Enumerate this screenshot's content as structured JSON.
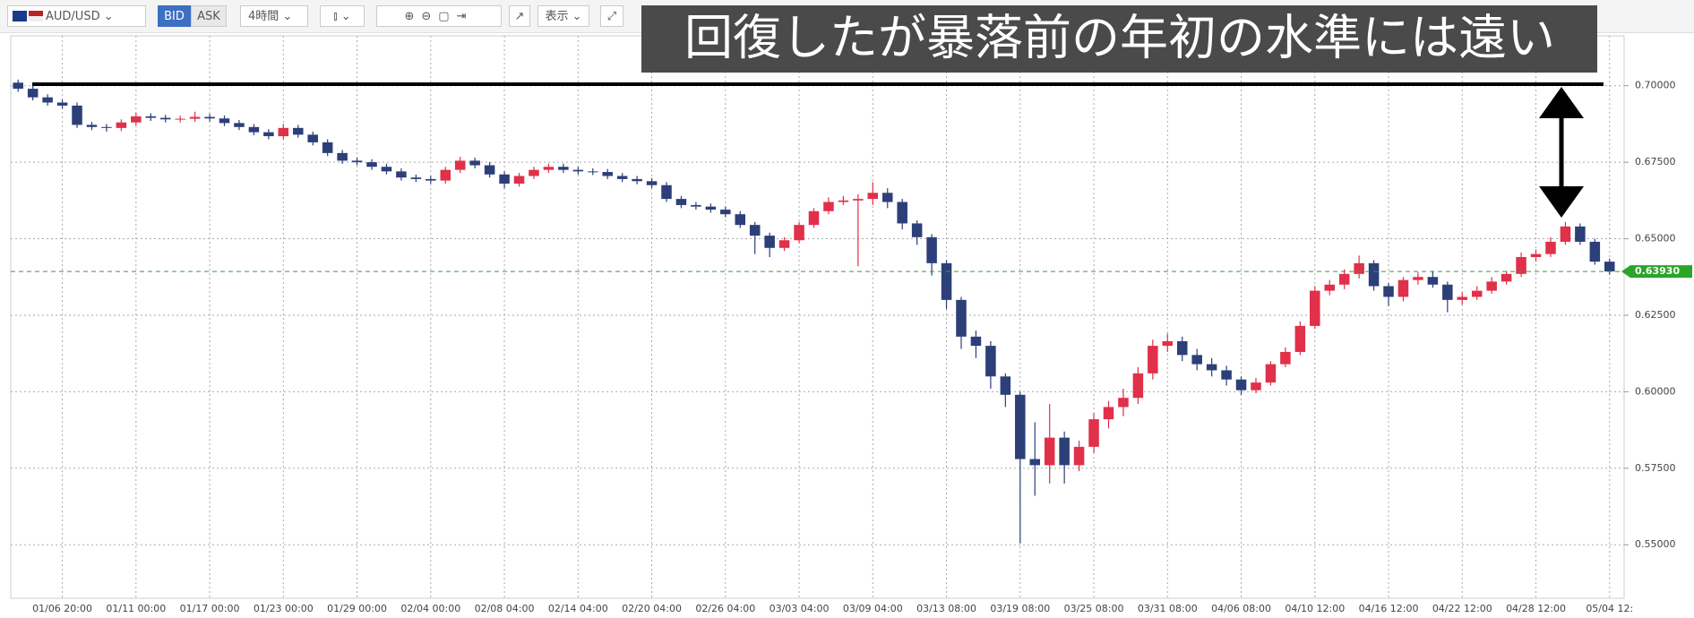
{
  "toolbar": {
    "symbol": "AUD/USD",
    "bid": "BID",
    "ask": "ASK",
    "interval": "4時間",
    "view": "表示"
  },
  "chart_data": {
    "type": "candlestick",
    "title": "回復したが暴落前の年初の水準には遠い",
    "categories": [
      null,
      null,
      null,
      "01/06 20:00",
      null,
      null,
      null,
      null,
      "01/11 00:00",
      null,
      null,
      null,
      null,
      "01/17 00:00",
      null,
      null,
      null,
      null,
      "01/23 00:00",
      null,
      null,
      null,
      null,
      "01/29 00:00",
      null,
      null,
      null,
      null,
      "02/04 00:00",
      null,
      null,
      null,
      null,
      "02/08 04:00",
      null,
      null,
      null,
      null,
      "02/14 04:00",
      null,
      null,
      null,
      null,
      "02/20 04:00",
      null,
      null,
      null,
      null,
      "02/26 04:00",
      null,
      null,
      null,
      null,
      "03/03 04:00",
      null,
      null,
      null,
      null,
      "03/09 04:00",
      null,
      null,
      null,
      null,
      "03/13 08:00",
      null,
      null,
      null,
      null,
      "03/19 08:00",
      null,
      null,
      null,
      null,
      "03/25 08:00",
      null,
      null,
      null,
      null,
      "03/31 08:00",
      null,
      null,
      null,
      null,
      "04/06 08:00",
      null,
      null,
      null,
      null,
      "04/10 12:00",
      null,
      null,
      null,
      null,
      "04/16 12:00",
      null,
      null,
      null,
      null,
      "04/22 12:00",
      null,
      null,
      null,
      null,
      "04/28 12:00",
      null,
      null,
      null,
      null,
      "05/04 12:"
    ],
    "open": [
      0.701,
      0.699,
      0.6962,
      0.6945,
      0.6935,
      0.6872,
      0.6865,
      0.6862,
      0.688,
      0.69,
      0.6895,
      0.689,
      0.6892,
      0.6898,
      0.6893,
      0.6878,
      0.6865,
      0.6848,
      0.6835,
      0.6862,
      0.684,
      0.6815,
      0.678,
      0.6755,
      0.675,
      0.6735,
      0.672,
      0.67,
      0.6695,
      0.669,
      0.6725,
      0.6755,
      0.674,
      0.671,
      0.668,
      0.6705,
      0.6725,
      0.6735,
      0.6725,
      0.672,
      0.6718,
      0.6705,
      0.6695,
      0.6688,
      0.6675,
      0.663,
      0.661,
      0.6605,
      0.6595,
      0.658,
      0.6545,
      0.651,
      0.647,
      0.6495,
      0.6545,
      0.659,
      0.662,
      0.6625,
      0.663,
      0.665,
      0.662,
      0.655,
      0.6505,
      0.642,
      0.63,
      0.618,
      0.615,
      0.605,
      0.599,
      0.578,
      0.576,
      0.585,
      0.576,
      0.582,
      0.591,
      0.595,
      0.598,
      0.606,
      0.615,
      0.6165,
      0.612,
      0.609,
      0.607,
      0.604,
      0.6005,
      0.603,
      0.609,
      0.613,
      0.6215,
      0.633,
      0.635,
      0.6385,
      0.642,
      0.6345,
      0.631,
      0.6365,
      0.6375,
      0.635,
      0.63,
      0.631,
      0.633,
      0.636,
      0.6385,
      0.644,
      0.645,
      0.649,
      0.654,
      0.649,
      0.6425
    ],
    "high": [
      0.702,
      0.7,
      0.6972,
      0.6955,
      0.6945,
      0.6882,
      0.6875,
      0.689,
      0.6912,
      0.691,
      0.6905,
      0.6902,
      0.6915,
      0.6908,
      0.6903,
      0.6888,
      0.6875,
      0.6858,
      0.6875,
      0.6872,
      0.685,
      0.6825,
      0.679,
      0.6765,
      0.676,
      0.6745,
      0.673,
      0.671,
      0.6705,
      0.6735,
      0.6768,
      0.6765,
      0.675,
      0.672,
      0.6715,
      0.6735,
      0.6745,
      0.6745,
      0.6735,
      0.673,
      0.6728,
      0.6715,
      0.6705,
      0.6698,
      0.6685,
      0.664,
      0.662,
      0.6615,
      0.6605,
      0.659,
      0.6555,
      0.652,
      0.6505,
      0.6555,
      0.66,
      0.6635,
      0.664,
      0.6645,
      0.6685,
      0.6665,
      0.663,
      0.656,
      0.6515,
      0.643,
      0.631,
      0.62,
      0.6165,
      0.606,
      0.6,
      0.59,
      0.596,
      0.587,
      0.584,
      0.593,
      0.597,
      0.601,
      0.608,
      0.617,
      0.619,
      0.618,
      0.614,
      0.611,
      0.6085,
      0.605,
      0.6045,
      0.61,
      0.6145,
      0.623,
      0.6345,
      0.6365,
      0.64,
      0.6445,
      0.643,
      0.6355,
      0.6375,
      0.639,
      0.6395,
      0.636,
      0.6325,
      0.6345,
      0.6375,
      0.6395,
      0.6455,
      0.6465,
      0.6505,
      0.6555,
      0.655,
      0.65,
      0.6435
    ],
    "low": [
      0.698,
      0.6952,
      0.6935,
      0.6925,
      0.6862,
      0.6855,
      0.685,
      0.6852,
      0.687,
      0.6885,
      0.688,
      0.688,
      0.6882,
      0.6883,
      0.6868,
      0.6855,
      0.6838,
      0.6825,
      0.6825,
      0.683,
      0.6805,
      0.677,
      0.6745,
      0.674,
      0.6725,
      0.671,
      0.669,
      0.6685,
      0.668,
      0.668,
      0.6715,
      0.673,
      0.67,
      0.6665,
      0.667,
      0.6695,
      0.6715,
      0.6715,
      0.671,
      0.6708,
      0.6695,
      0.6685,
      0.6678,
      0.6665,
      0.662,
      0.66,
      0.6595,
      0.6585,
      0.657,
      0.6535,
      0.645,
      0.644,
      0.646,
      0.6485,
      0.6535,
      0.658,
      0.661,
      0.641,
      0.661,
      0.66,
      0.653,
      0.648,
      0.638,
      0.627,
      0.614,
      0.611,
      0.601,
      0.595,
      0.5505,
      0.566,
      0.57,
      0.57,
      0.574,
      0.58,
      0.588,
      0.592,
      0.596,
      0.604,
      0.613,
      0.61,
      0.607,
      0.605,
      0.602,
      0.599,
      0.5995,
      0.602,
      0.608,
      0.612,
      0.6205,
      0.6315,
      0.6335,
      0.637,
      0.633,
      0.628,
      0.6295,
      0.635,
      0.634,
      0.626,
      0.6285,
      0.63,
      0.632,
      0.635,
      0.6375,
      0.6425,
      0.644,
      0.648,
      0.648,
      0.6415,
      0.6383
    ],
    "close": [
      0.699,
      0.6962,
      0.6945,
      0.6935,
      0.6872,
      0.6865,
      0.6862,
      0.688,
      0.69,
      0.6895,
      0.689,
      0.6892,
      0.6898,
      0.6893,
      0.6878,
      0.6865,
      0.6848,
      0.6835,
      0.6862,
      0.684,
      0.6815,
      0.678,
      0.6755,
      0.675,
      0.6735,
      0.672,
      0.67,
      0.6695,
      0.669,
      0.6725,
      0.6755,
      0.674,
      0.671,
      0.668,
      0.6705,
      0.6725,
      0.6735,
      0.6725,
      0.672,
      0.6718,
      0.6705,
      0.6695,
      0.6688,
      0.6675,
      0.663,
      0.661,
      0.6605,
      0.6595,
      0.658,
      0.6545,
      0.651,
      0.647,
      0.6495,
      0.6545,
      0.659,
      0.662,
      0.6625,
      0.663,
      0.665,
      0.662,
      0.655,
      0.6505,
      0.642,
      0.63,
      0.618,
      0.615,
      0.605,
      0.599,
      0.578,
      0.576,
      0.585,
      0.576,
      0.582,
      0.591,
      0.595,
      0.598,
      0.606,
      0.615,
      0.6165,
      0.612,
      0.609,
      0.607,
      0.604,
      0.6005,
      0.603,
      0.609,
      0.613,
      0.6215,
      0.633,
      0.635,
      0.6385,
      0.642,
      0.6345,
      0.631,
      0.6365,
      0.6375,
      0.635,
      0.63,
      0.631,
      0.633,
      0.636,
      0.6385,
      0.644,
      0.645,
      0.649,
      0.654,
      0.649,
      0.6425,
      0.6393
    ],
    "up_color": "#e0304a",
    "down_color": "#2c3f78",
    "ylim": [
      0.5325,
      0.7163
    ],
    "yticks": [
      {
        "value": 0.55,
        "label": "0.55000"
      },
      {
        "value": 0.575,
        "label": "0.57500"
      },
      {
        "value": 0.6,
        "label": "0.60000"
      },
      {
        "value": 0.625,
        "label": "0.62500"
      },
      {
        "value": 0.65,
        "label": "0.65000"
      },
      {
        "value": 0.675,
        "label": "0.67500"
      },
      {
        "value": 0.7,
        "label": "0.70000"
      }
    ],
    "grid": true,
    "current_price": {
      "value": 0.6393,
      "label": "0.63930",
      "color": "#2aa52a"
    }
  }
}
